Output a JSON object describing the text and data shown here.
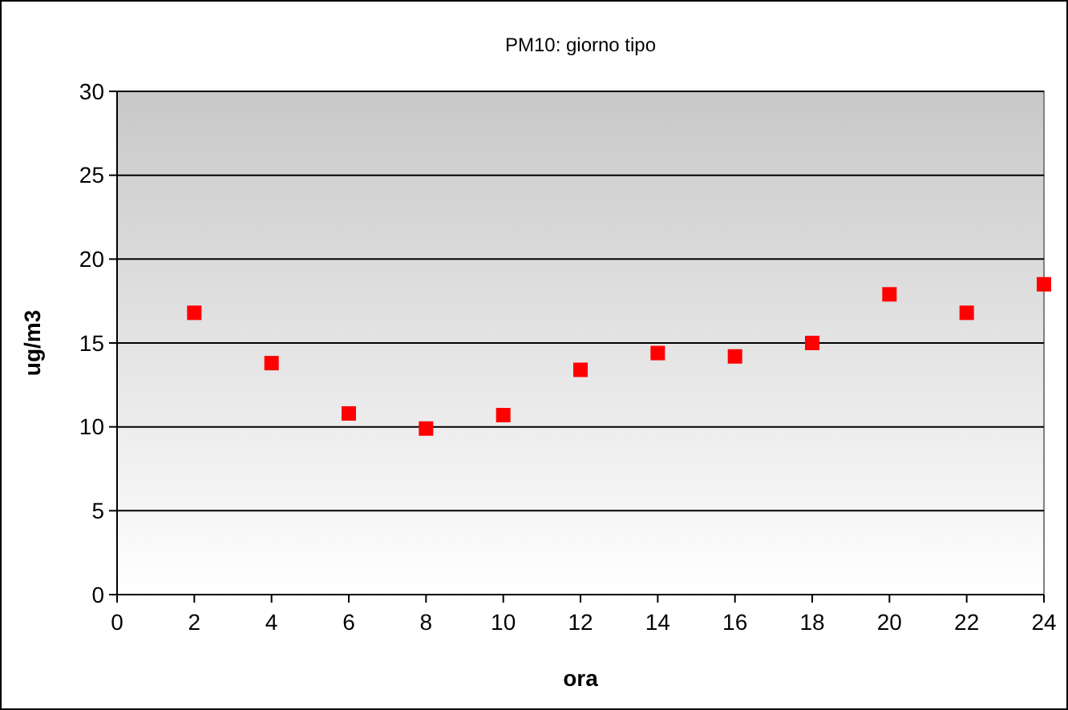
{
  "chart_data": {
    "type": "scatter",
    "title": "PM10: giorno tipo",
    "xlabel": "ora",
    "ylabel": "ug/m3",
    "x": [
      2,
      4,
      6,
      8,
      10,
      12,
      14,
      16,
      18,
      20,
      22,
      24
    ],
    "series": [
      {
        "color": "#ff0000",
        "values": [
          16.8,
          13.8,
          10.8,
          9.9,
          10.7,
          13.4,
          14.4,
          14.2,
          15.0,
          17.9,
          16.8,
          18.5
        ]
      }
    ],
    "xlim": [
      0,
      24
    ],
    "xticks": [
      0,
      2,
      4,
      6,
      8,
      10,
      12,
      14,
      16,
      18,
      20,
      22,
      24
    ],
    "ylim": [
      0,
      30
    ],
    "yticks": [
      0,
      5,
      10,
      15,
      20,
      25,
      30
    ],
    "grid": "y",
    "marker": "square"
  }
}
